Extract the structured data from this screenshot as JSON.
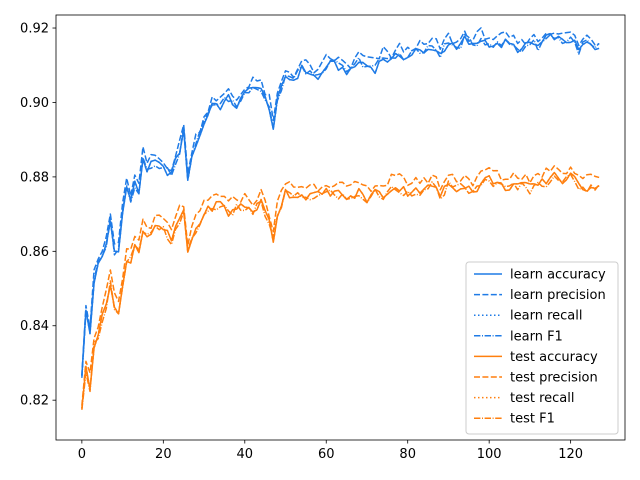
{
  "chart_data": {
    "type": "line",
    "title": "",
    "xlabel": "",
    "ylabel": "",
    "xlim": [
      -6.35,
      133.35
    ],
    "ylim": [
      0.8093,
      0.9235
    ],
    "xticks": [
      0,
      20,
      40,
      60,
      80,
      100,
      120
    ],
    "yticks": [
      0.82,
      0.84,
      0.86,
      0.88,
      0.9,
      0.92
    ],
    "ytick_labels": [
      "0.82",
      "0.84",
      "0.86",
      "0.88",
      "0.90",
      "0.92"
    ],
    "grid": false,
    "legend_position": "lower-right",
    "colors": {
      "learn": "#1f7be6",
      "test": "#ff7f0e"
    },
    "anchors": {
      "learn_accuracy": [
        [
          0,
          0.826
        ],
        [
          1,
          0.844
        ],
        [
          2,
          0.838
        ],
        [
          3,
          0.852
        ],
        [
          4,
          0.856
        ],
        [
          5,
          0.858
        ],
        [
          6,
          0.862
        ],
        [
          7,
          0.868
        ],
        [
          8,
          0.86
        ],
        [
          9,
          0.861
        ],
        [
          10,
          0.87
        ],
        [
          11,
          0.877
        ],
        [
          12,
          0.874
        ],
        [
          13,
          0.878
        ],
        [
          14,
          0.876
        ],
        [
          15,
          0.885
        ],
        [
          16,
          0.882
        ],
        [
          18,
          0.884
        ],
        [
          20,
          0.882
        ],
        [
          22,
          0.881
        ],
        [
          24,
          0.887
        ],
        [
          25,
          0.892
        ],
        [
          26,
          0.88
        ],
        [
          28,
          0.889
        ],
        [
          30,
          0.894
        ],
        [
          32,
          0.9
        ],
        [
          34,
          0.899
        ],
        [
          36,
          0.901
        ],
        [
          38,
          0.899
        ],
        [
          40,
          0.902
        ],
        [
          42,
          0.905
        ],
        [
          44,
          0.903
        ],
        [
          46,
          0.899
        ],
        [
          47,
          0.893
        ],
        [
          48,
          0.9
        ],
        [
          50,
          0.907
        ],
        [
          52,
          0.906
        ],
        [
          54,
          0.909
        ],
        [
          56,
          0.908
        ],
        [
          58,
          0.906
        ],
        [
          60,
          0.91
        ],
        [
          62,
          0.91
        ],
        [
          64,
          0.909
        ],
        [
          66,
          0.908
        ],
        [
          68,
          0.911
        ],
        [
          70,
          0.91
        ],
        [
          72,
          0.909
        ],
        [
          74,
          0.912
        ],
        [
          76,
          0.911
        ],
        [
          78,
          0.913
        ],
        [
          80,
          0.912
        ],
        [
          82,
          0.914
        ],
        [
          84,
          0.913
        ],
        [
          86,
          0.915
        ],
        [
          88,
          0.913
        ],
        [
          90,
          0.916
        ],
        [
          92,
          0.914
        ],
        [
          94,
          0.917
        ],
        [
          96,
          0.915
        ],
        [
          98,
          0.917
        ],
        [
          100,
          0.916
        ],
        [
          102,
          0.915
        ],
        [
          104,
          0.916
        ],
        [
          106,
          0.915
        ],
        [
          108,
          0.914
        ],
        [
          110,
          0.916
        ],
        [
          112,
          0.915
        ],
        [
          114,
          0.917
        ],
        [
          116,
          0.918
        ],
        [
          118,
          0.916
        ],
        [
          120,
          0.917
        ],
        [
          122,
          0.914
        ],
        [
          124,
          0.916
        ],
        [
          126,
          0.914
        ],
        [
          127,
          0.915
        ]
      ],
      "test_accuracy": [
        [
          0,
          0.817
        ],
        [
          1,
          0.829
        ],
        [
          2,
          0.824
        ],
        [
          3,
          0.835
        ],
        [
          4,
          0.838
        ],
        [
          5,
          0.842
        ],
        [
          6,
          0.846
        ],
        [
          7,
          0.852
        ],
        [
          8,
          0.845
        ],
        [
          9,
          0.843
        ],
        [
          10,
          0.85
        ],
        [
          11,
          0.857
        ],
        [
          12,
          0.858
        ],
        [
          13,
          0.862
        ],
        [
          14,
          0.86
        ],
        [
          15,
          0.866
        ],
        [
          16,
          0.864
        ],
        [
          18,
          0.866
        ],
        [
          20,
          0.866
        ],
        [
          22,
          0.863
        ],
        [
          24,
          0.869
        ],
        [
          25,
          0.87
        ],
        [
          26,
          0.86
        ],
        [
          28,
          0.866
        ],
        [
          30,
          0.87
        ],
        [
          32,
          0.872
        ],
        [
          34,
          0.873
        ],
        [
          36,
          0.87
        ],
        [
          38,
          0.872
        ],
        [
          40,
          0.872
        ],
        [
          42,
          0.871
        ],
        [
          44,
          0.873
        ],
        [
          46,
          0.868
        ],
        [
          47,
          0.863
        ],
        [
          48,
          0.87
        ],
        [
          50,
          0.876
        ],
        [
          52,
          0.875
        ],
        [
          54,
          0.875
        ],
        [
          56,
          0.875
        ],
        [
          58,
          0.875
        ],
        [
          60,
          0.876
        ],
        [
          62,
          0.876
        ],
        [
          64,
          0.875
        ],
        [
          66,
          0.874
        ],
        [
          68,
          0.876
        ],
        [
          70,
          0.874
        ],
        [
          72,
          0.876
        ],
        [
          74,
          0.875
        ],
        [
          76,
          0.877
        ],
        [
          78,
          0.877
        ],
        [
          80,
          0.876
        ],
        [
          82,
          0.877
        ],
        [
          84,
          0.876
        ],
        [
          86,
          0.878
        ],
        [
          88,
          0.875
        ],
        [
          90,
          0.878
        ],
        [
          92,
          0.877
        ],
        [
          94,
          0.878
        ],
        [
          96,
          0.876
        ],
        [
          98,
          0.878
        ],
        [
          100,
          0.88
        ],
        [
          102,
          0.878
        ],
        [
          104,
          0.877
        ],
        [
          106,
          0.878
        ],
        [
          108,
          0.878
        ],
        [
          110,
          0.877
        ],
        [
          112,
          0.878
        ],
        [
          114,
          0.879
        ],
        [
          116,
          0.881
        ],
        [
          118,
          0.879
        ],
        [
          120,
          0.88
        ],
        [
          122,
          0.878
        ],
        [
          124,
          0.877
        ],
        [
          126,
          0.878
        ],
        [
          127,
          0.878
        ]
      ]
    },
    "series": [
      {
        "name": "learn accuracy",
        "group": "learn",
        "style": "solid",
        "offset": 0.0,
        "amp": 0.0012,
        "seed": 1
      },
      {
        "name": "learn precision",
        "group": "learn",
        "style": "dashed",
        "offset": 0.0018,
        "amp": 0.0014,
        "seed": 2
      },
      {
        "name": "learn recall",
        "group": "learn",
        "style": "dotted",
        "offset": 0.0,
        "amp": 0.0012,
        "seed": 1
      },
      {
        "name": "learn F1",
        "group": "learn",
        "style": "dashdot",
        "offset": 0.0002,
        "amp": 0.0013,
        "seed": 3
      },
      {
        "name": "test accuracy",
        "group": "test",
        "style": "solid",
        "offset": 0.0,
        "amp": 0.0012,
        "seed": 4
      },
      {
        "name": "test precision",
        "group": "test",
        "style": "dashed",
        "offset": 0.0025,
        "amp": 0.0014,
        "seed": 5
      },
      {
        "name": "test recall",
        "group": "test",
        "style": "dotted",
        "offset": 0.0,
        "amp": 0.0012,
        "seed": 4
      },
      {
        "name": "test F1",
        "group": "test",
        "style": "dashdot",
        "offset": -0.0004,
        "amp": 0.0013,
        "seed": 6
      }
    ],
    "legend": [
      "learn accuracy",
      "learn precision",
      "learn recall",
      "learn F1",
      "test accuracy",
      "test precision",
      "test recall",
      "test F1"
    ]
  }
}
